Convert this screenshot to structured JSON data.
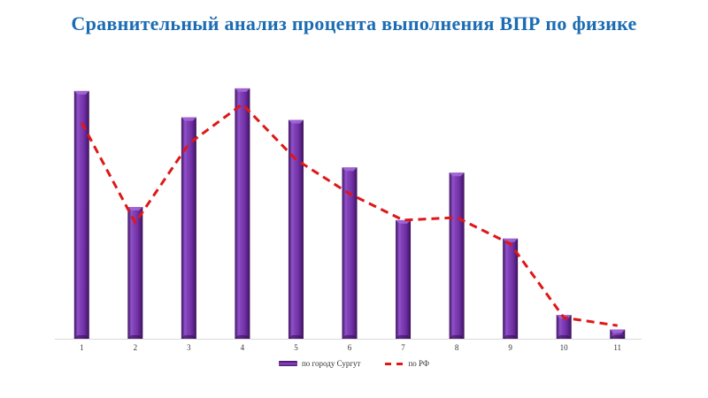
{
  "title": {
    "text": "Сравнительный анализ процента выполнения ВПР по физике",
    "color": "#1B6CB3"
  },
  "chart_data": {
    "type": "bar",
    "subtype": "combo-bar-line",
    "title": "Сравнительный анализ процента выполнения ВПР по физике",
    "categories": [
      "1",
      "2",
      "3",
      "4",
      "5",
      "6",
      "7",
      "8",
      "9",
      "10",
      "11"
    ],
    "series": [
      {
        "name": "по городу Сургут",
        "type": "bar",
        "color": "#7030A0",
        "values": [
          94,
          50,
          84,
          95,
          83,
          65,
          45,
          63,
          38,
          9,
          3.5
        ]
      },
      {
        "name": "по РФ",
        "type": "line",
        "line_style": "dashed",
        "color": "#DF1717",
        "values": [
          82,
          44,
          74,
          89,
          68,
          55,
          45,
          46,
          36,
          8,
          5
        ]
      }
    ],
    "xlabel": "",
    "ylabel": "",
    "units": "percent",
    "ylim": [
      0,
      100
    ],
    "grid": false,
    "y_axis_visible": false,
    "legend_position": "bottom"
  },
  "axis": {
    "line_color": "#D9D9D9",
    "tick_label_color": "#333333"
  }
}
